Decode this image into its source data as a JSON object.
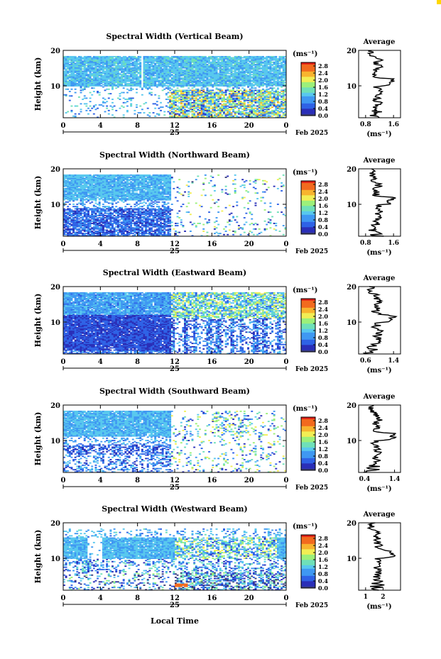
{
  "figure": {
    "xlabel": "Local Time",
    "date_label": "Feb 2025",
    "day_label": "25",
    "colorbar_unit": "(ms⁻¹)",
    "avg_xunit": "(ms⁻¹)",
    "avg_title": "Average",
    "ylabel": "Height (km)",
    "colors": {
      "scale": [
        "#3a3d7a",
        "#2a2fb8",
        "#2f62e6",
        "#3f98f2",
        "#58c8ee",
        "#6fe0b8",
        "#9cf07a",
        "#f2ee54",
        "#f8b42e",
        "#f26a1e",
        "#e01e16"
      ]
    }
  },
  "chart_data": [
    {
      "type": "heatmap",
      "title": "Spectral Width (Vertical Beam)",
      "xticks": [
        "0",
        "4",
        "8",
        "12",
        "16",
        "20",
        "0"
      ],
      "xlim": [
        0,
        24
      ],
      "yticks": [
        "20",
        "10"
      ],
      "ylim": [
        1,
        20
      ],
      "colorbar_ticks": [
        "2.8",
        "2.4",
        "2.0",
        "1.6",
        "1.2",
        "0.8",
        "0.4",
        "0.0"
      ],
      "colorbar_range": [
        0,
        3.0
      ],
      "average": {
        "xticks": [
          "0.8",
          "1.6"
        ],
        "xlim": [
          0.6,
          1.8
        ],
        "yticks": [
          "20",
          "10"
        ]
      },
      "pattern": "vertical"
    },
    {
      "type": "heatmap",
      "title": "Spectral Width (Northward Beam)",
      "xticks": [
        "0",
        "4",
        "8",
        "12",
        "16",
        "20",
        "0"
      ],
      "xlim": [
        0,
        24
      ],
      "yticks": [
        "20",
        "10"
      ],
      "ylim": [
        1,
        20
      ],
      "colorbar_ticks": [
        "2.8",
        "2.4",
        "2.0",
        "1.6",
        "1.2",
        "0.8",
        "0.4",
        "0.0"
      ],
      "colorbar_range": [
        0,
        3.0
      ],
      "average": {
        "xticks": [
          "0.8",
          "1.6"
        ],
        "xlim": [
          0.6,
          1.8
        ],
        "yticks": [
          "20",
          "10"
        ]
      },
      "pattern": "north"
    },
    {
      "type": "heatmap",
      "title": "Spectral Width (Eastward Beam)",
      "xticks": [
        "0",
        "4",
        "8",
        "12",
        "16",
        "20",
        "0"
      ],
      "xlim": [
        0,
        24
      ],
      "yticks": [
        "20",
        "10"
      ],
      "ylim": [
        1,
        20
      ],
      "colorbar_ticks": [
        "2.8",
        "2.4",
        "2.0",
        "1.6",
        "1.2",
        "0.8",
        "0.4",
        "0.0"
      ],
      "colorbar_range": [
        0,
        3.0
      ],
      "average": {
        "xticks": [
          "0.6",
          "1.4"
        ],
        "xlim": [
          0.4,
          1.6
        ],
        "yticks": [
          "20",
          "10"
        ]
      },
      "pattern": "east"
    },
    {
      "type": "heatmap",
      "title": "Spectral Width (Southward Beam)",
      "xticks": [
        "0",
        "4",
        "8",
        "12",
        "16",
        "20",
        "0"
      ],
      "xlim": [
        0,
        24
      ],
      "yticks": [
        "20",
        "10"
      ],
      "ylim": [
        1,
        20
      ],
      "colorbar_ticks": [
        "2.8",
        "2.4",
        "2.0",
        "1.6",
        "1.2",
        "0.8",
        "0.4",
        "0.0"
      ],
      "colorbar_range": [
        0,
        3.0
      ],
      "average": {
        "xticks": [
          "0.4",
          "1.4"
        ],
        "xlim": [
          0.2,
          1.6
        ],
        "yticks": [
          "20",
          "10"
        ]
      },
      "pattern": "south"
    },
    {
      "type": "heatmap",
      "title": "Spectral Width (Westward Beam)",
      "xticks": [
        "0",
        "4",
        "8",
        "12",
        "16",
        "20",
        "0"
      ],
      "xlim": [
        0,
        24
      ],
      "yticks": [
        "20",
        "10"
      ],
      "ylim": [
        1,
        20
      ],
      "colorbar_ticks": [
        "2.8",
        "2.4",
        "2.0",
        "1.6",
        "1.2",
        "0.8",
        "0.4",
        "0.0"
      ],
      "colorbar_range": [
        0,
        3.0
      ],
      "average": {
        "xticks": [
          "1",
          "2"
        ],
        "xlim": [
          0.6,
          3.0
        ],
        "yticks": [
          "20",
          "10"
        ]
      },
      "pattern": "west"
    }
  ]
}
